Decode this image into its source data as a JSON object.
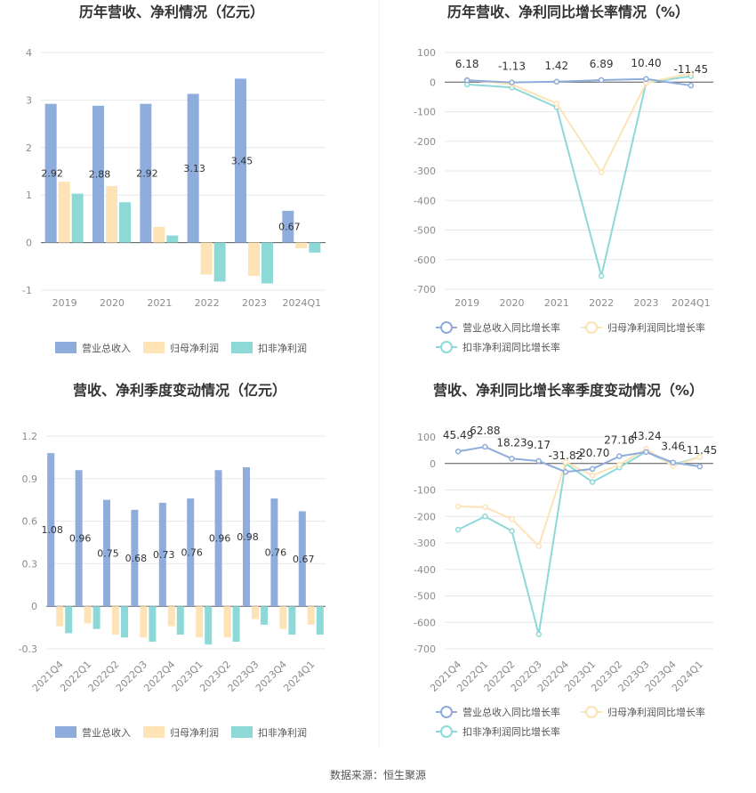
{
  "source_text": "数据来源：恒生聚源",
  "colors": {
    "revenue": "#8eacdc",
    "net_profit": "#fde3b6",
    "deducted_profit": "#8dd9d8",
    "grid": "#e8e8e8",
    "axis_text": "#8c8c8c"
  },
  "chart_data": [
    {
      "type": "bar",
      "title": "历年营收、净利情况（亿元）",
      "categories": [
        "2019",
        "2020",
        "2021",
        "2022",
        "2023",
        "2024Q1"
      ],
      "ylim": [
        -1,
        4
      ],
      "yticks": [
        -1,
        0,
        1,
        2,
        3,
        4
      ],
      "grid": true,
      "legend_position": "bottom",
      "series": [
        {
          "name": "营业总收入",
          "values": [
            2.92,
            2.88,
            2.92,
            3.13,
            3.45,
            0.67
          ],
          "labels": [
            "2.92",
            "2.88",
            "2.92",
            "3.13",
            "3.45",
            "0.67"
          ]
        },
        {
          "name": "归母净利润",
          "values": [
            1.28,
            1.19,
            0.33,
            -0.67,
            -0.7,
            -0.12
          ]
        },
        {
          "name": "扣非净利润",
          "values": [
            1.03,
            0.85,
            0.15,
            -0.82,
            -0.86,
            -0.21
          ]
        }
      ]
    },
    {
      "type": "line",
      "title": "历年营收、净利同比增长率情况（%）",
      "categories": [
        "2019",
        "2020",
        "2021",
        "2022",
        "2023",
        "2024Q1"
      ],
      "ylim": [
        -700,
        100
      ],
      "yticks": [
        -700,
        -600,
        -500,
        -400,
        -300,
        -200,
        -100,
        0,
        100
      ],
      "grid": true,
      "legend_position": "bottom",
      "series": [
        {
          "name": "营业总收入同比增长率",
          "values": [
            6.18,
            -1.13,
            1.42,
            6.89,
            10.4,
            -11.45
          ],
          "labels": [
            "6.18",
            "-1.13",
            "1.42",
            "6.89",
            "10.40",
            "-11.45"
          ]
        },
        {
          "name": "归母净利润同比增长率",
          "values": [
            8,
            -8,
            -72,
            -305,
            -3,
            30
          ]
        },
        {
          "name": "扣非净利润同比增长率",
          "values": [
            -8,
            -18,
            -85,
            -655,
            -2,
            20
          ]
        }
      ]
    },
    {
      "type": "bar",
      "title": "营收、净利季度变动情况（亿元）",
      "categories": [
        "2021Q4",
        "2022Q1",
        "2022Q2",
        "2022Q3",
        "2022Q4",
        "2023Q1",
        "2023Q2",
        "2023Q3",
        "2023Q4",
        "2024Q1"
      ],
      "ylim": [
        -0.3,
        1.2
      ],
      "yticks": [
        -0.3,
        0,
        0.3,
        0.6,
        0.9,
        1.2
      ],
      "grid": true,
      "legend_position": "bottom",
      "series": [
        {
          "name": "营业总收入",
          "values": [
            1.08,
            0.96,
            0.75,
            0.68,
            0.73,
            0.76,
            0.96,
            0.98,
            0.76,
            0.67
          ],
          "labels": [
            "1.08",
            "0.96",
            "0.75",
            "0.68",
            "0.73",
            "0.76",
            "0.96",
            "0.98",
            "0.76",
            "0.67"
          ]
        },
        {
          "name": "归母净利润",
          "values": [
            -0.14,
            -0.12,
            -0.2,
            -0.22,
            -0.14,
            -0.22,
            -0.22,
            -0.09,
            -0.16,
            -0.13
          ]
        },
        {
          "name": "扣非净利润",
          "values": [
            -0.19,
            -0.16,
            -0.22,
            -0.25,
            -0.2,
            -0.27,
            -0.25,
            -0.13,
            -0.2,
            -0.2
          ]
        }
      ]
    },
    {
      "type": "line",
      "title": "营收、净利同比增长率季度变动情况（%）",
      "categories": [
        "2021Q4",
        "2022Q1",
        "2022Q2",
        "2022Q3",
        "2022Q4",
        "2023Q1",
        "2023Q2",
        "2023Q3",
        "2023Q4",
        "2024Q1"
      ],
      "ylim": [
        -700,
        100
      ],
      "yticks": [
        -700,
        -600,
        -500,
        -400,
        -300,
        -200,
        -100,
        0,
        100
      ],
      "grid": true,
      "legend_position": "bottom",
      "series": [
        {
          "name": "营业总收入同比增长率",
          "values": [
            45.49,
            62.88,
            18.23,
            9.17,
            -31.82,
            -20.7,
            27.16,
            43.24,
            3.46,
            -11.45
          ],
          "labels": [
            "45.49",
            "62.88",
            "18.23",
            "9.17",
            "-31.82",
            "-20.70",
            "27.16",
            "43.24",
            "3.46",
            "-11.45"
          ]
        },
        {
          "name": "归母净利润同比增长率",
          "values": [
            -162,
            -165,
            -210,
            -312,
            5,
            -45,
            -5,
            55,
            -10,
            25
          ]
        },
        {
          "name": "扣非净利润同比增长率",
          "values": [
            -250,
            -200,
            -255,
            -645,
            0,
            -70,
            -15,
            45,
            -5,
            25
          ]
        }
      ]
    }
  ]
}
